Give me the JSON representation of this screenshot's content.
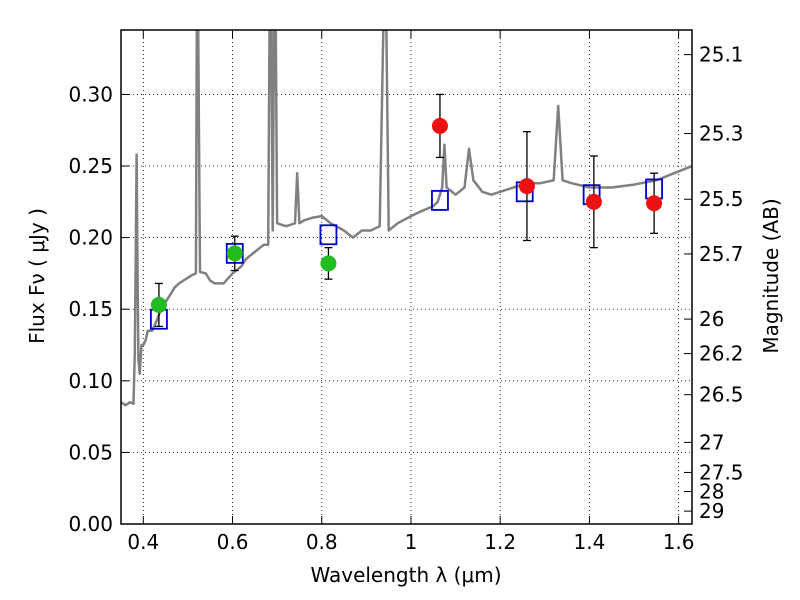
{
  "chart_data": {
    "type": "scatter",
    "xlabel": "Wavelength  λ (μm)",
    "ylabel": "Flux  Fν  ( μJy )",
    "ylabel_right": "Magnitude (AB)",
    "xlim": [
      0.35,
      1.63
    ],
    "ylim": [
      0.0,
      0.345
    ],
    "x_ticks": [
      0.4,
      0.6,
      0.8,
      1.0,
      1.2,
      1.4,
      1.6
    ],
    "x_tick_labels": [
      "0.4",
      "0.6",
      "0.8",
      "1",
      "1.2",
      "1.4",
      "1.6"
    ],
    "y_ticks": [
      0.0,
      0.05,
      0.1,
      0.15,
      0.2,
      0.25,
      0.3
    ],
    "y_tick_labels": [
      "0.00",
      "0.05",
      "0.10",
      "0.15",
      "0.20",
      "0.25",
      "0.30"
    ],
    "right_ticks": [
      {
        "label": "25.1",
        "flux": 0.3278
      },
      {
        "label": "25.3",
        "flux": 0.2727
      },
      {
        "label": "25.5",
        "flux": 0.2268
      },
      {
        "label": "25.7",
        "flux": 0.1886
      },
      {
        "label": "26",
        "flux": 0.1431
      },
      {
        "label": "26.2",
        "flux": 0.119
      },
      {
        "label": "26.5",
        "flux": 0.0903
      },
      {
        "label": "27",
        "flux": 0.057
      },
      {
        "label": "27.5",
        "flux": 0.036
      },
      {
        "label": "28",
        "flux": 0.0227
      },
      {
        "label": "29",
        "flux": 0.009
      }
    ],
    "grid": true,
    "colors": {
      "model": "#808080",
      "model_boxes": "#0000cc",
      "green_points": "#22bb22",
      "red_points": "#ee1111",
      "errorbars": "#000000"
    },
    "series": [
      {
        "style": "line",
        "color": "#808080",
        "points": [
          [
            0.35,
            0.085
          ],
          [
            0.36,
            0.083
          ],
          [
            0.37,
            0.085
          ],
          [
            0.378,
            0.084
          ],
          [
            0.381,
            0.12
          ],
          [
            0.383,
            0.185
          ],
          [
            0.385,
            0.258
          ],
          [
            0.387,
            0.18
          ],
          [
            0.389,
            0.115
          ],
          [
            0.392,
            0.105
          ],
          [
            0.396,
            0.125
          ],
          [
            0.4,
            0.125
          ],
          [
            0.405,
            0.128
          ],
          [
            0.41,
            0.135
          ],
          [
            0.42,
            0.135
          ],
          [
            0.43,
            0.142
          ],
          [
            0.44,
            0.15
          ],
          [
            0.45,
            0.155
          ],
          [
            0.46,
            0.16
          ],
          [
            0.47,
            0.165
          ],
          [
            0.48,
            0.168
          ],
          [
            0.49,
            0.17
          ],
          [
            0.5,
            0.172
          ],
          [
            0.51,
            0.174
          ],
          [
            0.518,
            0.175
          ],
          [
            0.52,
            0.345
          ],
          [
            0.523,
            0.345
          ],
          [
            0.527,
            0.176
          ],
          [
            0.54,
            0.175
          ],
          [
            0.55,
            0.17
          ],
          [
            0.56,
            0.168
          ],
          [
            0.58,
            0.168
          ],
          [
            0.6,
            0.175
          ],
          [
            0.62,
            0.18
          ],
          [
            0.63,
            0.185
          ],
          [
            0.65,
            0.19
          ],
          [
            0.67,
            0.195
          ],
          [
            0.68,
            0.195
          ],
          [
            0.683,
            0.345
          ],
          [
            0.687,
            0.345
          ],
          [
            0.69,
            0.205
          ],
          [
            0.693,
            0.345
          ],
          [
            0.697,
            0.345
          ],
          [
            0.7,
            0.21
          ],
          [
            0.72,
            0.208
          ],
          [
            0.74,
            0.21
          ],
          [
            0.745,
            0.245
          ],
          [
            0.75,
            0.21
          ],
          [
            0.76,
            0.212
          ],
          [
            0.78,
            0.214
          ],
          [
            0.8,
            0.215
          ],
          [
            0.82,
            0.21
          ],
          [
            0.85,
            0.205
          ],
          [
            0.87,
            0.2
          ],
          [
            0.89,
            0.205
          ],
          [
            0.91,
            0.205
          ],
          [
            0.93,
            0.208
          ],
          [
            0.938,
            0.345
          ],
          [
            0.945,
            0.345
          ],
          [
            0.95,
            0.205
          ],
          [
            0.97,
            0.21
          ],
          [
            1.0,
            0.215
          ],
          [
            1.02,
            0.218
          ],
          [
            1.05,
            0.222
          ],
          [
            1.06,
            0.225
          ],
          [
            1.07,
            0.235
          ],
          [
            1.075,
            0.265
          ],
          [
            1.08,
            0.235
          ],
          [
            1.1,
            0.23
          ],
          [
            1.12,
            0.235
          ],
          [
            1.13,
            0.262
          ],
          [
            1.14,
            0.24
          ],
          [
            1.16,
            0.232
          ],
          [
            1.18,
            0.23
          ],
          [
            1.2,
            0.232
          ],
          [
            1.23,
            0.235
          ],
          [
            1.26,
            0.238
          ],
          [
            1.29,
            0.238
          ],
          [
            1.32,
            0.24
          ],
          [
            1.33,
            0.292
          ],
          [
            1.34,
            0.24
          ],
          [
            1.36,
            0.238
          ],
          [
            1.4,
            0.235
          ],
          [
            1.45,
            0.235
          ],
          [
            1.5,
            0.237
          ],
          [
            1.55,
            0.24
          ],
          [
            1.59,
            0.245
          ],
          [
            1.63,
            0.25
          ]
        ]
      },
      {
        "style": "open-square",
        "color": "#0000cc",
        "points": [
          [
            0.435,
            0.143
          ],
          [
            0.605,
            0.189
          ],
          [
            0.815,
            0.202
          ],
          [
            1.065,
            0.226
          ],
          [
            1.255,
            0.232
          ],
          [
            1.405,
            0.23
          ],
          [
            1.545,
            0.234
          ]
        ]
      },
      {
        "style": "filled-circle",
        "color": "#22bb22",
        "points": [
          {
            "x": 0.435,
            "y": 0.153,
            "yerr_low": 0.138,
            "yerr_high": 0.168
          },
          {
            "x": 0.605,
            "y": 0.189,
            "yerr_low": 0.177,
            "yerr_high": 0.201
          },
          {
            "x": 0.815,
            "y": 0.182,
            "yerr_low": 0.171,
            "yerr_high": 0.193
          }
        ]
      },
      {
        "style": "filled-circle",
        "color": "#ee1111",
        "points": [
          {
            "x": 1.065,
            "y": 0.278,
            "yerr_low": 0.256,
            "yerr_high": 0.3
          },
          {
            "x": 1.26,
            "y": 0.236,
            "yerr_low": 0.198,
            "yerr_high": 0.274
          },
          {
            "x": 1.41,
            "y": 0.225,
            "yerr_low": 0.193,
            "yerr_high": 0.257
          },
          {
            "x": 1.545,
            "y": 0.224,
            "yerr_low": 0.203,
            "yerr_high": 0.245
          }
        ]
      }
    ]
  }
}
